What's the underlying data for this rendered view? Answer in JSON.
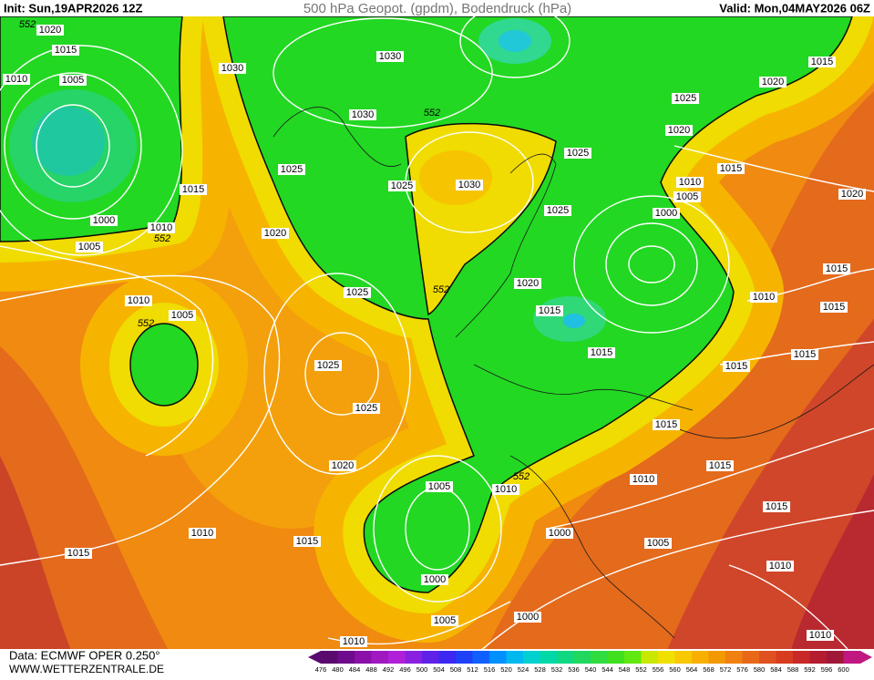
{
  "header": {
    "init": "Init: Sun,19APR2026 12Z",
    "title": "500 hPa Geopot. (gpdm), Bodendruck (hPa)",
    "valid": "Valid: Mon,04MAY2026 06Z"
  },
  "footer": {
    "data": "Data: ECMWF OPER 0.250°",
    "url": "WWW.WETTERZENTRALE.DE"
  },
  "contour_labels": [
    "1020",
    "552",
    "1015",
    "1010",
    "1005",
    "1030",
    "1030",
    "1030",
    "552",
    "1025",
    "1020",
    "1015",
    "1020",
    "1025",
    "1015",
    "1025",
    "1015",
    "1025",
    "1030",
    "1010",
    "1005",
    "1020",
    "1000",
    "1010",
    "552",
    "1025",
    "1000",
    "1020",
    "1005",
    "1015",
    "1025",
    "552",
    "1020",
    "1010",
    "1010",
    "1015",
    "1015",
    "552",
    "1005",
    "1015",
    "1015",
    "1025",
    "1015",
    "1025",
    "1015",
    "1015",
    "1020",
    "552",
    "1010",
    "1005",
    "1010",
    "1015",
    "1010",
    "1000",
    "1015",
    "1005",
    "1015",
    "1010",
    "1000",
    "1000",
    "1005",
    "1010",
    "1010"
  ],
  "scale": {
    "values": [
      476,
      480,
      484,
      488,
      492,
      496,
      500,
      504,
      508,
      512,
      516,
      520,
      524,
      528,
      532,
      536,
      540,
      544,
      548,
      552,
      556,
      560,
      564,
      568,
      572,
      576,
      580,
      584,
      588,
      592,
      596,
      600
    ],
    "colors": [
      "#5a0a6e",
      "#6e0a8c",
      "#8a10a8",
      "#a018c0",
      "#b020d8",
      "#8a20e0",
      "#6020e8",
      "#3c28f0",
      "#2040f8",
      "#1060ff",
      "#0090ff",
      "#00b8f0",
      "#00d0d0",
      "#00d8a8",
      "#10d880",
      "#20d860",
      "#30dc40",
      "#40e020",
      "#60e810",
      "#c8e800",
      "#f0e000",
      "#f8c800",
      "#f8b000",
      "#f49800",
      "#f08010",
      "#e86818",
      "#e05020",
      "#d83c20",
      "#c82828",
      "#b41c30",
      "#a01838",
      "#c01880"
    ]
  }
}
